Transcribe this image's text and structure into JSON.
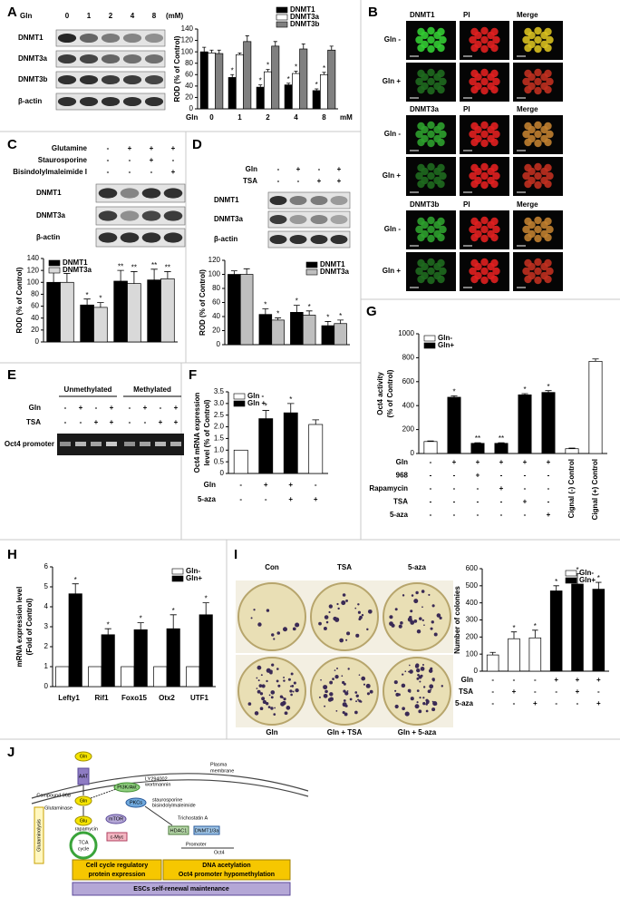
{
  "panel_labels": [
    "A",
    "B",
    "C",
    "D",
    "E",
    "F",
    "G",
    "H",
    "I",
    "J"
  ],
  "chart_data": [
    {
      "type": "bar",
      "y_label": "ROD (% of Control)",
      "x_label": "Gln",
      "x_unit": "mM",
      "categories": [
        "0",
        "1",
        "2",
        "4",
        "8"
      ],
      "series": [
        {
          "name": "DNMT1",
          "color": "#000000",
          "values": [
            100,
            55,
            38,
            42,
            32
          ],
          "errors": [
            8,
            5,
            4,
            3,
            3
          ],
          "stars": [
            null,
            "*",
            "*",
            "*",
            "*"
          ]
        },
        {
          "name": "DNMT3a",
          "color": "#ffffff",
          "values": [
            98,
            95,
            65,
            62,
            60
          ],
          "errors": [
            5,
            3,
            4,
            4,
            4
          ],
          "stars": [
            null,
            null,
            "*",
            "*",
            "*"
          ]
        },
        {
          "name": "DNMT3b",
          "color": "#808080",
          "values": [
            97,
            118,
            110,
            105,
            103
          ],
          "errors": [
            6,
            10,
            8,
            9,
            7
          ]
        }
      ],
      "ylim": [
        0,
        140
      ],
      "yticks": [
        0,
        20,
        40,
        60,
        80,
        100,
        120,
        140
      ],
      "legend": "top-right"
    },
    {
      "type": "bar",
      "y_label": "ROD (% of Control)",
      "categories": [
        null,
        null,
        null,
        null
      ],
      "series": [
        {
          "name": "DNMT1",
          "color": "#000000",
          "values": [
            100,
            62,
            102,
            104
          ],
          "errors": [
            22,
            10,
            18,
            18
          ],
          "stars": [
            null,
            "*",
            "**",
            "**"
          ]
        },
        {
          "name": "DNMT3a",
          "color": "#d9d9d9",
          "values": [
            100,
            58,
            98,
            106
          ],
          "errors": [
            15,
            8,
            20,
            12
          ],
          "stars": [
            null,
            "*",
            "**",
            "**"
          ]
        }
      ],
      "ylim": [
        0,
        140
      ],
      "yticks": [
        0,
        20,
        40,
        60,
        80,
        100,
        120,
        140
      ],
      "legend": "top-left"
    },
    {
      "type": "bar",
      "y_label": "ROD (% of Control)",
      "categories": [
        null,
        null,
        null,
        null
      ],
      "series": [
        {
          "name": "DNMT1",
          "color": "#000000",
          "values": [
            100,
            43,
            46,
            27
          ],
          "errors": [
            5,
            8,
            10,
            6
          ],
          "stars": [
            null,
            "*",
            "*",
            "*"
          ]
        },
        {
          "name": "DNMT3a",
          "color": "#bfbfbf",
          "values": [
            100,
            35,
            42,
            30
          ],
          "errors": [
            8,
            3,
            6,
            5
          ],
          "stars": [
            null,
            "*",
            "*",
            "*"
          ]
        }
      ],
      "ylim": [
        0,
        120
      ],
      "yticks": [
        0,
        20,
        40,
        60,
        80,
        100,
        120
      ],
      "legend": "top-right"
    },
    {
      "type": "bar",
      "y_label": [
        "Oct4 mRNA expression",
        "level (% of Control)"
      ],
      "categories": [
        null,
        null,
        null,
        null
      ],
      "series": [
        {
          "name": "Gln -",
          "color": "#ffffff",
          "values": [
            1,
            null,
            null,
            2.1
          ],
          "errors": [
            null,
            null,
            null,
            0.2
          ]
        },
        {
          "name": "Gln +",
          "color": "#000000",
          "values": [
            null,
            2.35,
            2.6,
            null
          ],
          "errors": [
            null,
            0.35,
            0.4,
            null
          ],
          "stars": [
            null,
            "*",
            "*",
            null
          ]
        }
      ],
      "ylim": [
        0,
        3.5
      ],
      "yticks": [
        0,
        0.5,
        {
          "value": 1,
          "label": "1.0"
        },
        1.5,
        {
          "value": 2,
          "label": "2.0"
        },
        2.5,
        {
          "value": 3,
          "label": "3.0"
        },
        3.5
      ],
      "conditions": [
        {
          "label": "Gln",
          "values": [
            "-",
            "+",
            "+",
            "-"
          ]
        },
        {
          "label": "5-aza",
          "values": [
            "-",
            "-",
            "+",
            "+"
          ]
        }
      ],
      "legend": "top-left"
    },
    {
      "type": "bar",
      "y_label": [
        "Oct4 activity",
        "(% of Control)"
      ],
      "categories": [
        null,
        null,
        null,
        null,
        null,
        null,
        "Cignal (-) Control",
        "Cignal (+) Control"
      ],
      "series": [
        {
          "name": "Gln-",
          "color": "#ffffff",
          "values": [
            100,
            null,
            null,
            null,
            null,
            null,
            40,
            770
          ],
          "errors": [
            5,
            null,
            null,
            null,
            null,
            null,
            5,
            20
          ]
        },
        {
          "name": "Gln+",
          "color": "#000000",
          "values": [
            null,
            470,
            85,
            85,
            490,
            510,
            null,
            null
          ],
          "errors": [
            null,
            12,
            5,
            5,
            10,
            15,
            null,
            null
          ],
          "stars": [
            null,
            "*",
            "**",
            "**",
            "*",
            "*",
            null,
            null
          ]
        }
      ],
      "ylim": [
        0,
        1000
      ],
      "yticks": [
        0,
        200,
        400,
        600,
        800,
        1000
      ],
      "conditions": [
        {
          "label": "Gln",
          "values": [
            "-",
            "+",
            "+",
            "+",
            "+",
            "+",
            null,
            null
          ]
        },
        {
          "label": "968",
          "values": [
            "-",
            "-",
            "+",
            "-",
            "-",
            "-",
            null,
            null
          ]
        },
        {
          "label": "Rapamycin",
          "values": [
            "-",
            "-",
            "-",
            "+",
            "-",
            "-",
            null,
            null
          ]
        },
        {
          "label": "TSA",
          "values": [
            "-",
            "-",
            "-",
            "-",
            "+",
            "-",
            null,
            null
          ]
        },
        {
          "label": "5-aza",
          "values": [
            "-",
            "-",
            "-",
            "-",
            "-",
            "+",
            null,
            null
          ]
        }
      ],
      "legend": "top-left"
    },
    {
      "type": "bar",
      "y_label": [
        "mRNA expression level",
        "(Fold of Control)"
      ],
      "categories": [
        "Lefty1",
        "Rif1",
        "Foxo15",
        "Otx2",
        "UTF1"
      ],
      "series": [
        {
          "name": "Gln-",
          "color": "#ffffff",
          "values": [
            1,
            1,
            1,
            1,
            1
          ]
        },
        {
          "name": "Gln+",
          "color": "#000000",
          "values": [
            4.65,
            2.6,
            2.85,
            2.9,
            3.6
          ],
          "errors": [
            0.5,
            0.3,
            0.35,
            0.7,
            0.6
          ],
          "stars": [
            "*",
            "*",
            "*",
            "*",
            "*"
          ]
        }
      ],
      "ylim": [
        0,
        6
      ],
      "yticks": [
        0,
        1,
        2,
        3,
        4,
        5,
        6
      ],
      "legend": "top-right"
    },
    {
      "type": "bar",
      "y_label": "Number of colonies",
      "categories": [
        null,
        null,
        null,
        null,
        null,
        null
      ],
      "series": [
        {
          "name": "Gln-",
          "color": "#ffffff",
          "values": [
            95,
            190,
            195,
            null,
            null,
            null
          ],
          "errors": [
            15,
            40,
            45,
            null,
            null,
            null
          ],
          "stars": [
            null,
            "*",
            "*",
            null,
            null,
            null
          ]
        },
        {
          "name": "Gln+",
          "color": "#000000",
          "values": [
            null,
            null,
            null,
            470,
            510,
            480
          ],
          "errors": [
            null,
            null,
            null,
            30,
            60,
            40
          ],
          "stars": [
            null,
            null,
            null,
            "*",
            "*",
            "*"
          ]
        }
      ],
      "ylim": [
        0,
        600
      ],
      "yticks": [
        0,
        100,
        200,
        300,
        400,
        500,
        600
      ],
      "conditions": [
        {
          "label": "Gln",
          "values": [
            "-",
            "-",
            "-",
            "+",
            "+",
            "+"
          ]
        },
        {
          "label": "TSA",
          "values": [
            "-",
            "+",
            "-",
            "-",
            "+",
            "-"
          ]
        },
        {
          "label": "5-aza",
          "values": [
            "-",
            "-",
            "+",
            "-",
            "-",
            "+"
          ]
        }
      ],
      "legend": "top-right"
    }
  ],
  "blots": [
    {
      "header": "Gln",
      "lanes": [
        "0",
        "1",
        "2",
        "4",
        "8"
      ],
      "unit": "(mM)",
      "rows": [
        "DNMT1",
        "DNMT3a",
        "DNMT3b",
        "β-actin"
      ]
    },
    {
      "conditions": [
        {
          "label": "Glutamine",
          "values": [
            "-",
            "+",
            "+",
            "+"
          ]
        },
        {
          "label": "Staurosporine",
          "values": [
            "-",
            "-",
            "+",
            "-"
          ]
        },
        {
          "label": "Bisindolylmaleimide I",
          "values": [
            "-",
            "-",
            "-",
            "+"
          ]
        }
      ],
      "rows": [
        "DNMT1",
        "DNMT3a",
        "β-actin"
      ]
    },
    {
      "conditions": [
        {
          "label": "Gln",
          "values": [
            "-",
            "+",
            "-",
            "+"
          ]
        },
        {
          "label": "TSA",
          "values": [
            "-",
            "-",
            "+",
            "+"
          ]
        }
      ],
      "rows": [
        "DNMT1",
        "DNMT3a",
        "β-actin"
      ]
    }
  ],
  "microscopy": {
    "blocks": [
      [
        "DNMT1",
        "PI",
        "Merge"
      ],
      [
        "DNMT3a",
        "PI",
        "Merge"
      ],
      [
        "DNMT3b",
        "PI",
        "Merge"
      ]
    ],
    "rows": [
      "Gln -",
      "Gln +"
    ]
  },
  "gel": {
    "headers": [
      "Unmethylated",
      "Methylated"
    ],
    "conditions": [
      {
        "label": "Gln",
        "values": [
          "-",
          "+",
          "-",
          "+",
          "-",
          "+",
          "-",
          "+"
        ]
      },
      {
        "label": "TSA",
        "values": [
          "-",
          "-",
          "+",
          "+",
          "-",
          "-",
          "+",
          "+"
        ]
      }
    ],
    "row": "Oct4 promoter"
  },
  "colony_images": [
    "Con",
    "TSA",
    "5-aza",
    "Gln",
    "Gln + TSA",
    "Gln + 5-aza"
  ],
  "diagram": {
    "gln_top": "Gln",
    "aat": "AAT",
    "membrane": [
      "Plasma",
      "membrane"
    ],
    "compound": "Compound 968",
    "glutaminase": "Glutaminase",
    "gln": "Gln",
    "glu": "Glu",
    "glutaminolysis": "Glutaminolysis",
    "tca": [
      "TCA",
      "cycle"
    ],
    "pi3k": "PI3K/Akt",
    "ly": [
      "LY294002",
      "wortmannin"
    ],
    "pkc": "PKCs",
    "stauro": [
      "staurosporine",
      "bisindolylmaleimide"
    ],
    "mtor": "mTOR",
    "rapamycin": "rapamycin",
    "cmyc": "c-Myc",
    "tsa": "Trichostatin A",
    "hdac": "HDAC1",
    "dnmt": "DNMT1/3a",
    "promoter": "Promoter",
    "oct4": "Oct4",
    "box1": [
      "Cell cycle regulatory",
      "protein expression"
    ],
    "box2": [
      "DNA acetylation",
      "Oct4 promoter hypomethylation"
    ],
    "box3": "ESCs self-renewal maintenance"
  }
}
